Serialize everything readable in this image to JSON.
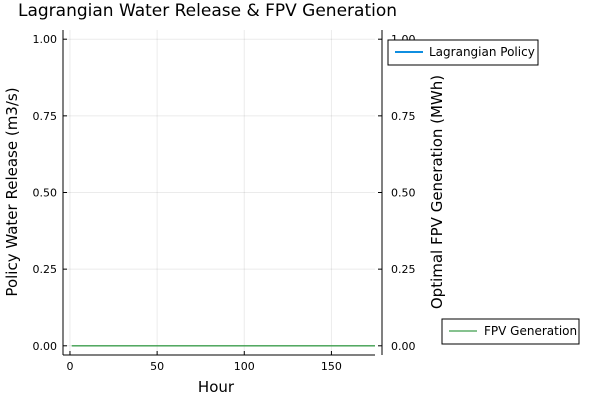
{
  "chart_data": {
    "type": "line",
    "title": "Lagrangian Water Release & FPV Generation",
    "xlabel": "Hour",
    "ylabel_left": "Policy Water Release (m3/s)",
    "ylabel_right": "Optimal FPV Generation (MWh)",
    "xlim": [
      -4,
      175
    ],
    "xticks": [
      0,
      50,
      100,
      150
    ],
    "ylim_left": [
      -0.03,
      1.03
    ],
    "yticks_left": [
      "0.00",
      "0.25",
      "0.50",
      "0.75",
      "1.00"
    ],
    "ylim_right": [
      -0.03,
      1.03
    ],
    "yticks_right": [
      "0.00",
      "0.25",
      "0.50",
      "0.75",
      "1.00"
    ],
    "grid": true,
    "series": [
      {
        "name": "Lagrangian Policy",
        "axis": "left",
        "color": "#0f8ee0",
        "x": [],
        "values": [],
        "legend": "top-right"
      },
      {
        "name": "FPV Generation",
        "axis": "right",
        "color": "#3d9e4c",
        "x": [
          1,
          175
        ],
        "values": [
          0,
          0
        ],
        "legend": "bottom-right"
      }
    ]
  }
}
